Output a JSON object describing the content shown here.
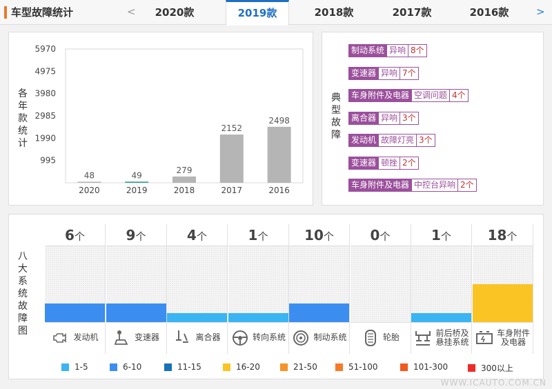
{
  "header": {
    "title": "车型故障统计",
    "prev_arrow": "<",
    "next_arrow": ">",
    "tabs": [
      "2020款",
      "2019款",
      "2018款",
      "2017款",
      "2016款"
    ],
    "active_tab": "2019款"
  },
  "yearly_panel": {
    "side_label": [
      "各",
      "年",
      "款",
      "统",
      "计"
    ]
  },
  "chart_data": {
    "type": "bar",
    "categories": [
      "2020",
      "2019",
      "2018",
      "2017",
      "2016"
    ],
    "values": [
      48,
      49,
      279,
      2152,
      2498
    ],
    "yticks": [
      995,
      1990,
      2985,
      3980,
      4975,
      5970
    ],
    "ylim": [
      0,
      5970
    ],
    "highlight_category": "2019",
    "colors": {
      "bar": "#b5b5b5",
      "highlight": "#2a9e8a"
    },
    "grid": false
  },
  "faults_panel": {
    "side_label": [
      "典",
      "型",
      "故",
      "障"
    ],
    "items": [
      {
        "category": "制动系统",
        "desc": "异响",
        "count": "8个"
      },
      {
        "category": "变速器",
        "desc": "异响",
        "count": "7个"
      },
      {
        "category": "车身附件及电器",
        "desc": "空调问题",
        "count": "4个"
      },
      {
        "category": "离合器",
        "desc": "异响",
        "count": "3个"
      },
      {
        "category": "发动机",
        "desc": "故障灯亮",
        "count": "3个"
      },
      {
        "category": "变速器",
        "desc": "顿挫",
        "count": "2个"
      },
      {
        "category": "车身附件及电器",
        "desc": "中控台异响",
        "count": "2个"
      }
    ]
  },
  "systems_panel": {
    "side_label": [
      "八",
      "大",
      "系",
      "统",
      "故",
      "障",
      "图"
    ],
    "unit": "个",
    "systems": [
      {
        "name": [
          "发动机"
        ],
        "count": "6",
        "level": 0.25,
        "color": "#3b8ef0",
        "icon": "engine-warning-icon"
      },
      {
        "name": [
          "变速器"
        ],
        "count": "9",
        "level": 0.25,
        "color": "#3b8ef0",
        "icon": "gear-shifter-icon"
      },
      {
        "name": [
          "离合器"
        ],
        "count": "4",
        "level": 0.12,
        "color": "#3ab4f2",
        "icon": "clutch-pedal-icon"
      },
      {
        "name": [
          "转向系统"
        ],
        "count": "1",
        "level": 0.12,
        "color": "#3ab4f2",
        "icon": "steering-wheel-icon"
      },
      {
        "name": [
          "制动系统"
        ],
        "count": "10",
        "level": 0.25,
        "color": "#3b8ef0",
        "icon": "brake-disc-icon"
      },
      {
        "name": [
          "轮胎"
        ],
        "count": "0",
        "level": 0,
        "color": "#3ab4f2",
        "icon": "tire-icon"
      },
      {
        "name": [
          "前后桥及",
          "悬挂系统"
        ],
        "count": "1",
        "level": 0.12,
        "color": "#3ab4f2",
        "icon": "suspension-icon"
      },
      {
        "name": [
          "车身附件",
          "及电器"
        ],
        "count": "18",
        "level": 0.5,
        "color": "#fbc425",
        "icon": "battery-icon"
      }
    ],
    "legend": [
      {
        "label": "1-5",
        "color": "#3ab4f2"
      },
      {
        "label": "6-10",
        "color": "#3b8ef0"
      },
      {
        "label": "11-15",
        "color": "#1572b8"
      },
      {
        "label": "16-20",
        "color": "#fbc425"
      },
      {
        "label": "21-50",
        "color": "#f59427"
      },
      {
        "label": "51-100",
        "color": "#f57b2a"
      },
      {
        "label": "101-300",
        "color": "#f4581e"
      },
      {
        "label": "300以上",
        "color": "#ee2a2a"
      }
    ]
  },
  "watermark": "WWW.ICAUTO.COM.CN"
}
